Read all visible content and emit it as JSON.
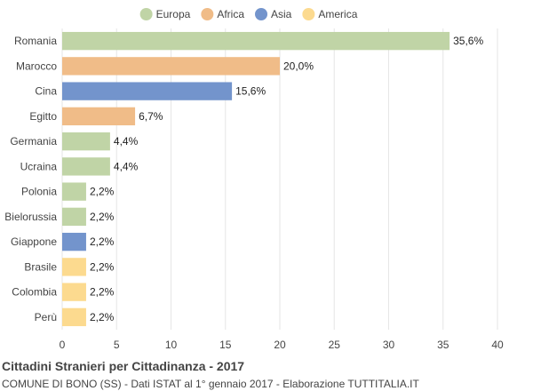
{
  "chart_data": {
    "type": "bar",
    "orientation": "horizontal",
    "title": "Cittadini Stranieri per Cittadinanza - 2017",
    "subtitle": "COMUNE DI BONO (SS) - Dati ISTAT al 1° gennaio 2017 - Elaborazione TUTTITALIA.IT",
    "legend_position": "top",
    "legend": [
      {
        "name": "Europa",
        "color": "#c0d4a6"
      },
      {
        "name": "Africa",
        "color": "#f0bc88"
      },
      {
        "name": "Asia",
        "color": "#7394cc"
      },
      {
        "name": "America",
        "color": "#fcda8f"
      }
    ],
    "categories": [
      "Romania",
      "Marocco",
      "Cina",
      "Egitto",
      "Germania",
      "Ucraina",
      "Polonia",
      "Bielorussia",
      "Giappone",
      "Brasile",
      "Colombia",
      "Perù"
    ],
    "values": [
      35.6,
      20.0,
      15.6,
      6.7,
      4.4,
      4.4,
      2.2,
      2.2,
      2.2,
      2.2,
      2.2,
      2.2
    ],
    "value_labels": [
      "35,6%",
      "20,0%",
      "15,6%",
      "6,7%",
      "4,4%",
      "4,4%",
      "2,2%",
      "2,2%",
      "2,2%",
      "2,2%",
      "2,2%",
      "2,2%"
    ],
    "groups": [
      "Europa",
      "Africa",
      "Asia",
      "Africa",
      "Europa",
      "Europa",
      "Europa",
      "Europa",
      "Asia",
      "America",
      "America",
      "America"
    ],
    "xlim": [
      0,
      40
    ],
    "xticks": [
      0,
      5,
      10,
      15,
      20,
      25,
      30,
      35,
      40
    ],
    "grid": true
  }
}
